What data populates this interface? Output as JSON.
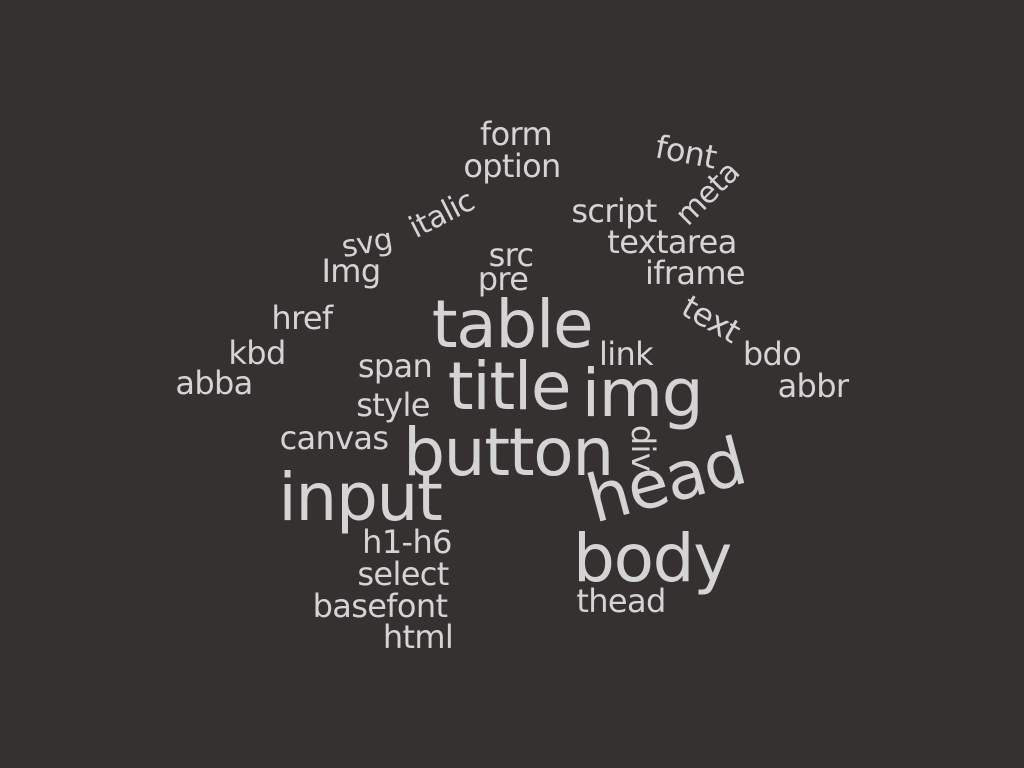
{
  "colors": {
    "background": "#353131",
    "text": "#d4d4d4"
  },
  "words": [
    {
      "id": "form",
      "text": "form"
    },
    {
      "id": "option",
      "text": "option"
    },
    {
      "id": "font",
      "text": "font"
    },
    {
      "id": "meta",
      "text": "meta"
    },
    {
      "id": "script",
      "text": "script"
    },
    {
      "id": "italic",
      "text": "italic"
    },
    {
      "id": "svg",
      "text": "svg"
    },
    {
      "id": "textarea",
      "text": "textarea"
    },
    {
      "id": "src",
      "text": "src"
    },
    {
      "id": "Img",
      "text": "Img"
    },
    {
      "id": "pre",
      "text": "pre"
    },
    {
      "id": "iframe",
      "text": "iframe"
    },
    {
      "id": "href",
      "text": "href"
    },
    {
      "id": "table",
      "text": "table"
    },
    {
      "id": "text",
      "text": "text"
    },
    {
      "id": "kbd",
      "text": "kbd"
    },
    {
      "id": "link",
      "text": "link"
    },
    {
      "id": "bdo",
      "text": "bdo"
    },
    {
      "id": "span",
      "text": "span"
    },
    {
      "id": "abba",
      "text": "abba"
    },
    {
      "id": "title",
      "text": "title"
    },
    {
      "id": "img",
      "text": "img"
    },
    {
      "id": "abbr",
      "text": "abbr"
    },
    {
      "id": "style",
      "text": "style"
    },
    {
      "id": "canvas",
      "text": "canvas"
    },
    {
      "id": "button",
      "text": "button"
    },
    {
      "id": "div",
      "text": "div"
    },
    {
      "id": "head",
      "text": "head"
    },
    {
      "id": "input",
      "text": "input"
    },
    {
      "id": "h1-h6",
      "text": "h1-h6"
    },
    {
      "id": "body",
      "text": "body"
    },
    {
      "id": "select",
      "text": "select"
    },
    {
      "id": "thead",
      "text": "thead"
    },
    {
      "id": "basefont",
      "text": "basefont"
    },
    {
      "id": "html",
      "text": "html"
    }
  ]
}
